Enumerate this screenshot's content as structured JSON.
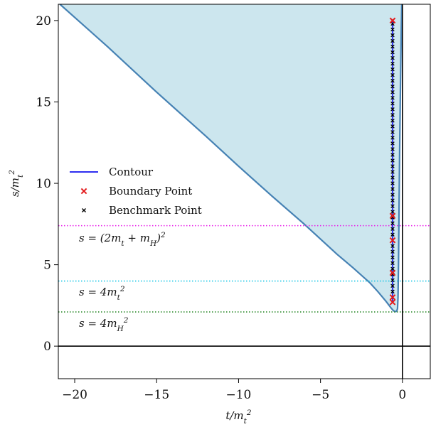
{
  "chart_data": {
    "type": "line",
    "xlabel": "t/m_t^2",
    "ylabel": "s/m_t^2",
    "xlim": [
      -21,
      1.7
    ],
    "ylim": [
      -2,
      21
    ],
    "x_ticks": [
      -20,
      -15,
      -10,
      -5,
      0
    ],
    "x_tick_labels": [
      "−20",
      "−15",
      "−10",
      "−5",
      "0"
    ],
    "y_ticks": [
      0,
      5,
      10,
      15,
      20
    ],
    "y_tick_labels": [
      "0",
      "5",
      "10",
      "15",
      "20"
    ],
    "grid": false,
    "legend_position": "center-left",
    "region": {
      "fill_color": "#cce6ee",
      "boundary_color": "#4682b4",
      "boundary": [
        [
          -20.9,
          21.0
        ],
        [
          -18,
          18.4
        ],
        [
          -15,
          15.6
        ],
        [
          -12,
          12.9
        ],
        [
          -10,
          11.05
        ],
        [
          -8,
          9.25
        ],
        [
          -6,
          7.5
        ],
        [
          -4,
          5.65
        ],
        [
          -3,
          4.8
        ],
        [
          -2,
          3.9
        ],
        [
          -1.5,
          3.35
        ],
        [
          -1.0,
          2.75
        ],
        [
          -0.7,
          2.35
        ],
        [
          -0.55,
          2.18
        ],
        [
          -0.45,
          2.12
        ],
        [
          -0.35,
          2.14
        ],
        [
          -0.3,
          2.3
        ],
        [
          -0.27,
          3.0
        ],
        [
          -0.24,
          5.0
        ],
        [
          -0.21,
          8.0
        ],
        [
          -0.17,
          12.0
        ],
        [
          -0.12,
          16.0
        ],
        [
          -0.07,
          19.5
        ],
        [
          -0.04,
          21.0
        ]
      ]
    },
    "series": [
      {
        "name": "Contour",
        "kind": "line",
        "color": "#1010ee",
        "points": [
          [
            -0.6,
            2.7
          ],
          [
            -0.6,
            20.0
          ]
        ]
      },
      {
        "name": "Boundary Point",
        "kind": "marker",
        "marker": "x",
        "color": "#e31a1c",
        "points": [
          [
            -0.6,
            2.7
          ],
          [
            -0.6,
            3.0
          ],
          [
            -0.6,
            4.5
          ],
          [
            -0.6,
            6.5
          ],
          [
            -0.6,
            8.0
          ],
          [
            -0.6,
            20.0
          ]
        ]
      },
      {
        "name": "Benchmark Point",
        "kind": "marker",
        "marker": "x",
        "color": "#000000",
        "x": -0.6,
        "y_from": 3.0,
        "y_to": 20.0,
        "y_step": 0.35
      }
    ],
    "hlines": [
      {
        "y": 7.4,
        "color": "#e81be8",
        "style": "dotted",
        "label": "s = (2m_t + m_H)^2"
      },
      {
        "y": 4.0,
        "color": "#1ec8e6",
        "style": "dotted",
        "label": "s = 4m_t^2"
      },
      {
        "y": 2.1,
        "color": "#2e8b2e",
        "style": "dotted",
        "label": "s = 4m_H^2"
      },
      {
        "y": 0.0,
        "color": "#000000",
        "style": "solid",
        "label": ""
      }
    ],
    "vlines": [
      {
        "x": 0.0,
        "color": "#000000",
        "style": "solid"
      }
    ]
  }
}
